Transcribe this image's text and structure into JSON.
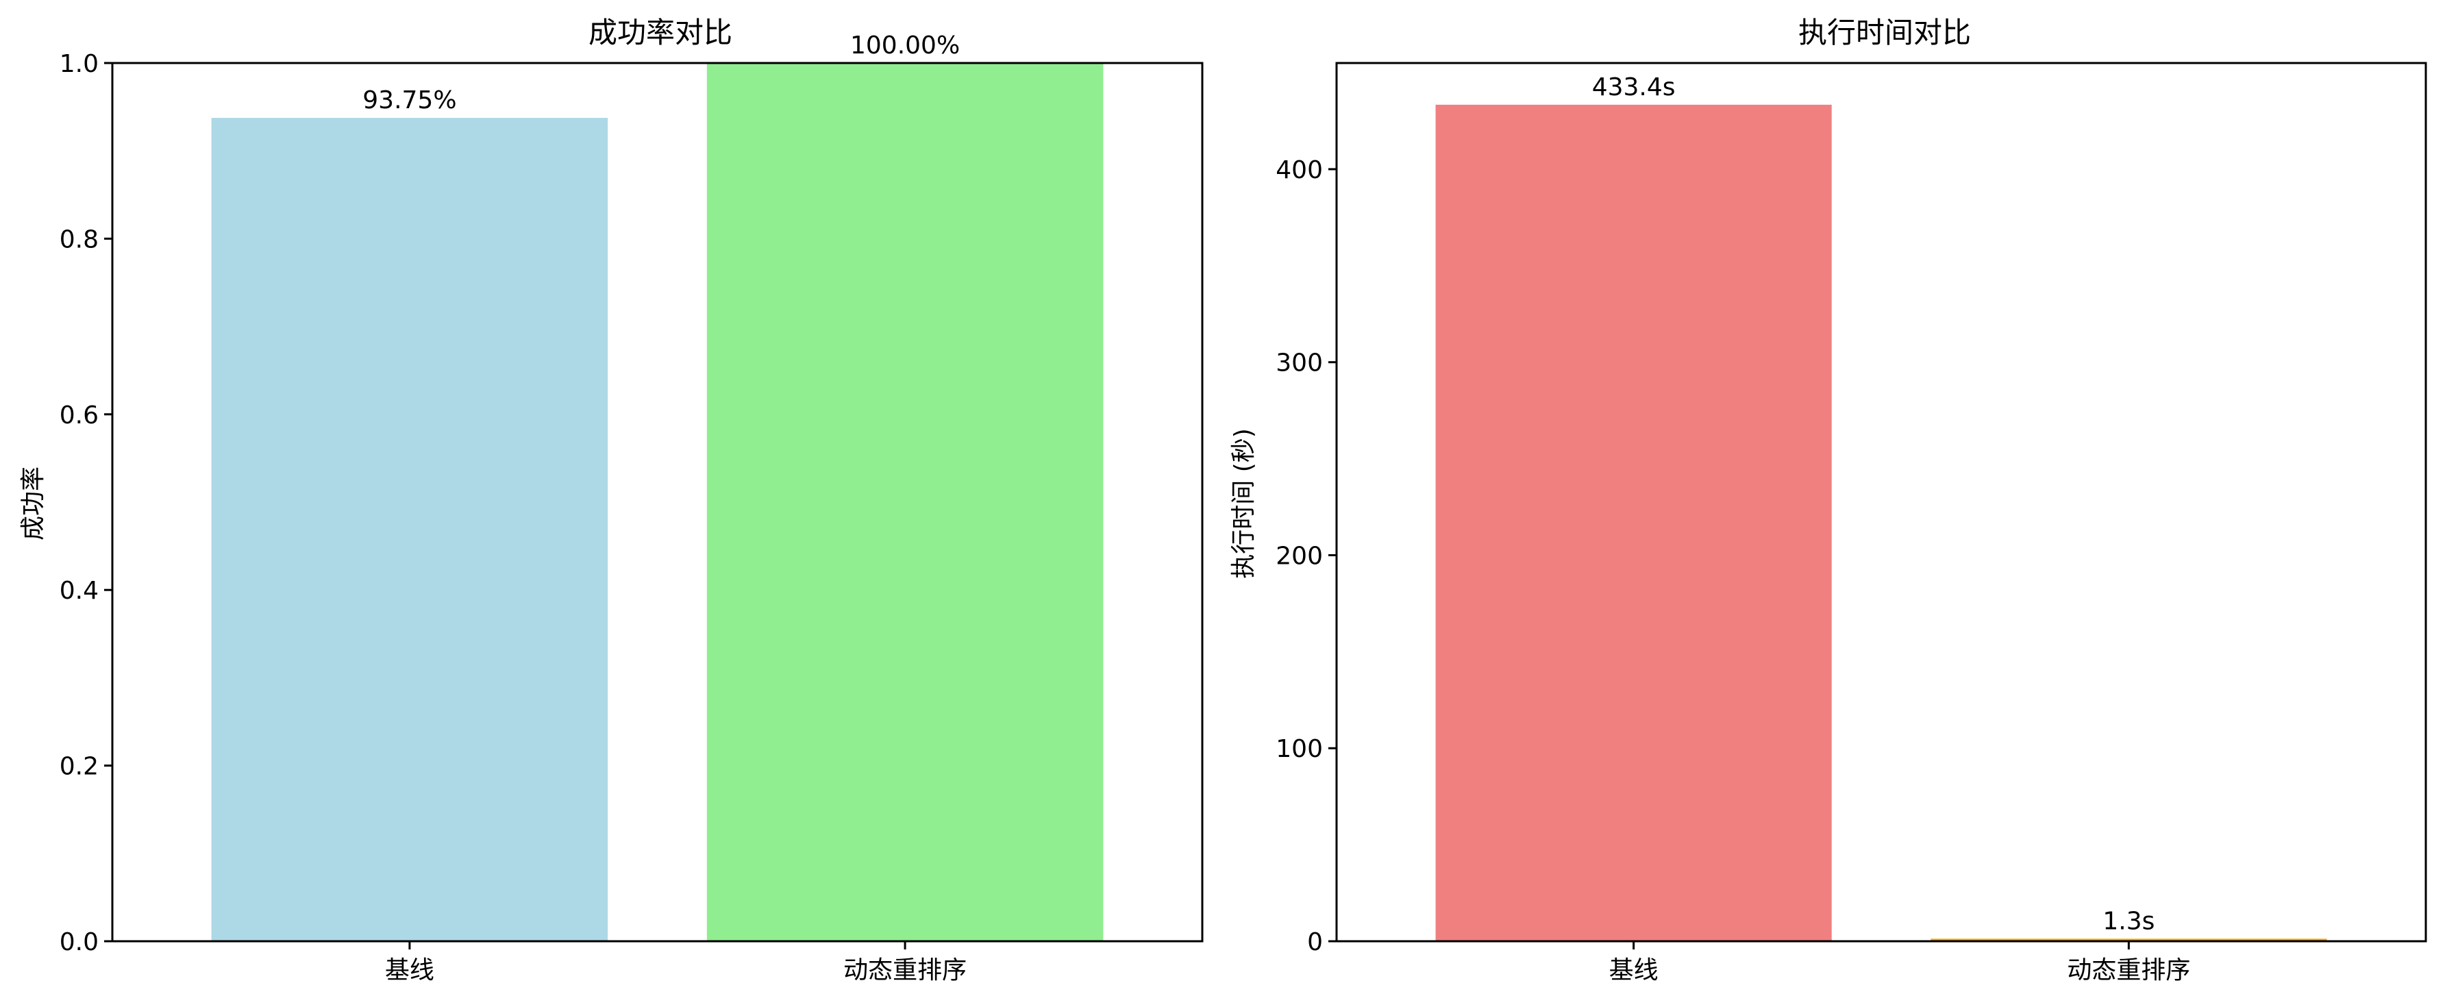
{
  "chart_data": [
    {
      "type": "bar",
      "title": "成功率对比",
      "xlabel": "",
      "ylabel": "成功率",
      "categories": [
        "基线",
        "动态重排序"
      ],
      "values": [
        0.9375,
        1.0
      ],
      "value_labels": [
        "93.75%",
        "100.00%"
      ],
      "colors": [
        "#add8e6",
        "#90ee90"
      ],
      "ylim": [
        0,
        1.0
      ],
      "yticks": [
        0.0,
        0.2,
        0.4,
        0.6,
        0.8,
        1.0
      ],
      "ytick_labels": [
        "0.0",
        "0.2",
        "0.4",
        "0.6",
        "0.8",
        "1.0"
      ],
      "grid": false
    },
    {
      "type": "bar",
      "title": "执行时间对比",
      "xlabel": "",
      "ylabel": "执行时间 (秒)",
      "categories": [
        "基线",
        "动态重排序"
      ],
      "values": [
        433.4,
        1.3
      ],
      "value_labels": [
        "433.4s",
        "1.3s"
      ],
      "colors": [
        "#f08080",
        "#ffa500"
      ],
      "ylim": [
        0,
        455
      ],
      "yticks": [
        0,
        100,
        200,
        300,
        400
      ],
      "ytick_labels": [
        "0",
        "100",
        "200",
        "300",
        "400"
      ],
      "grid": false
    }
  ]
}
